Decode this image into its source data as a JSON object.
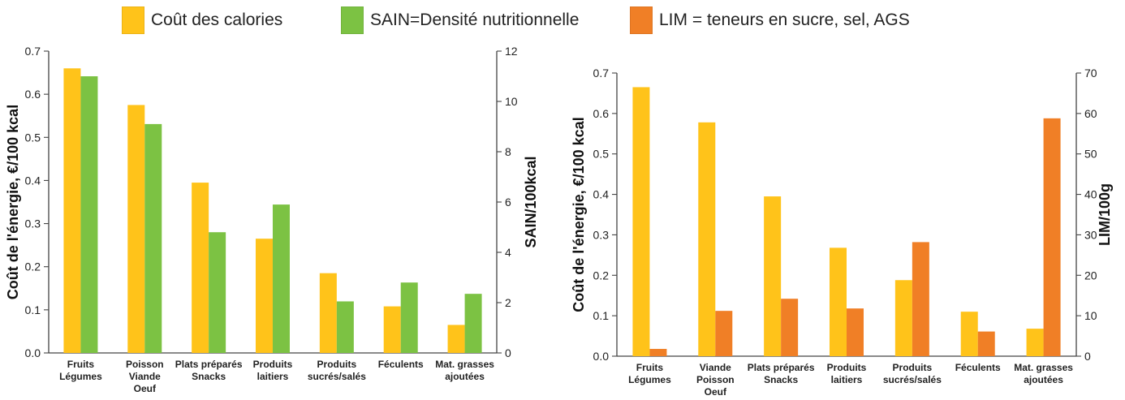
{
  "colors": {
    "cost": "#FFC31A",
    "sain": "#7CC243",
    "lim": "#F07F26"
  },
  "legend": {
    "items": [
      {
        "label": "Coût des calories",
        "color": "#FFC31A"
      },
      {
        "label": "SAIN=Densité nutritionnelle",
        "color": "#7CC243"
      },
      {
        "label": "LIM = teneurs en sucre, sel, AGS",
        "color": "#F07F26"
      }
    ]
  },
  "chart_data": [
    {
      "type": "bar",
      "categories": [
        [
          "Fruits",
          "Légumes"
        ],
        [
          "Poisson",
          "Viande",
          "Oeuf"
        ],
        [
          "Plats préparés",
          "Snacks"
        ],
        [
          "Produits",
          "laitiers"
        ],
        [
          "Produits",
          "sucrés/salés"
        ],
        [
          "Féculents"
        ],
        [
          "Mat. grasses",
          "ajoutées"
        ]
      ],
      "series": [
        {
          "name": "Coût des calories",
          "axis": "left",
          "values": [
            0.66,
            0.575,
            0.395,
            0.265,
            0.185,
            0.108,
            0.065
          ]
        },
        {
          "name": "SAIN=Densité nutritionnelle",
          "axis": "right",
          "values": [
            11.0,
            9.1,
            4.8,
            5.9,
            2.05,
            2.8,
            2.35
          ]
        }
      ],
      "ylabel": "Coût de l'énergie, €/100 kcal",
      "ylim": [
        0,
        0.7
      ],
      "yticks": [
        "0.0",
        "0.1",
        "0.2",
        "0.3",
        "0.4",
        "0.5",
        "0.6",
        "0.7"
      ],
      "y2label": "SAIN/100kcal",
      "y2lim": [
        0,
        12
      ],
      "y2ticks": [
        "0",
        "2",
        "4",
        "6",
        "8",
        "10",
        "12"
      ],
      "grid": false
    },
    {
      "type": "bar",
      "categories": [
        [
          "Fruits",
          "Légumes"
        ],
        [
          "Viande",
          "Poisson",
          "Oeuf"
        ],
        [
          "Plats préparés",
          "Snacks"
        ],
        [
          "Produits",
          "laitiers"
        ],
        [
          "Produits",
          "sucrés/salés"
        ],
        [
          "Féculents"
        ],
        [
          "Mat. grasses",
          "ajoutées"
        ]
      ],
      "series": [
        {
          "name": "Coût des calories",
          "axis": "left",
          "values": [
            0.665,
            0.578,
            0.395,
            0.268,
            0.188,
            0.11,
            0.068
          ]
        },
        {
          "name": "LIM = teneurs en sucre, sel, AGS",
          "axis": "right",
          "values": [
            1.8,
            11.2,
            14.2,
            11.8,
            28.2,
            6.1,
            58.8
          ]
        }
      ],
      "ylabel": "Coût de l'énergie, €/100 kcal",
      "ylim": [
        0,
        0.7
      ],
      "yticks": [
        "0.0",
        "0.1",
        "0.2",
        "0.3",
        "0.4",
        "0.5",
        "0.6",
        "0.7"
      ],
      "y2label": "LIM/100g",
      "y2lim": [
        0,
        70
      ],
      "y2ticks": [
        "0",
        "10",
        "20",
        "30",
        "40",
        "50",
        "60",
        "70"
      ],
      "grid": false
    }
  ]
}
